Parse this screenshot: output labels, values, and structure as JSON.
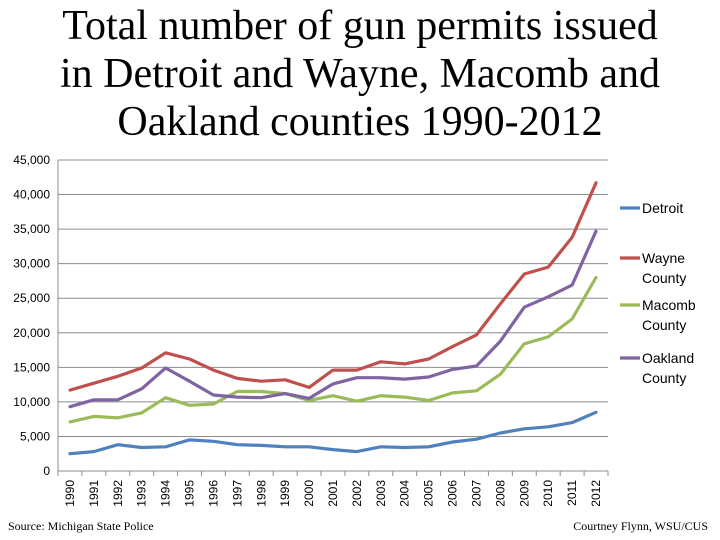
{
  "title_lines": [
    "Total number of gun permits issued",
    "in Detroit and Wayne, Macomb and",
    "Oakland counties 1990-2012"
  ],
  "source": "Source: Michigan State Police",
  "credit": "Courtney Flynn, WSU/CUS",
  "chart_data": {
    "type": "line",
    "title": "Total number of gun permits issued in Detroit and Wayne, Macomb and Oakland counties 1990-2012",
    "xlabel": "",
    "ylabel": "",
    "ylim": [
      0,
      45000
    ],
    "yticks": [
      "0",
      "5,000",
      "10,000",
      "15,000",
      "20,000",
      "25,000",
      "30,000",
      "35,000",
      "40,000",
      "45,000"
    ],
    "categories": [
      "1990",
      "1991",
      "1992",
      "1993",
      "1994",
      "1995",
      "1996",
      "1997",
      "1998",
      "1999",
      "2000",
      "2001",
      "2002",
      "2003",
      "2004",
      "2005",
      "2006",
      "2007",
      "2008",
      "2009",
      "2010",
      "2011",
      "2012"
    ],
    "legend_position": "right",
    "series": [
      {
        "name": "Detroit",
        "legend_lines": [
          "Detroit"
        ],
        "color": "#4f81bd",
        "values": [
          2500,
          2800,
          3800,
          3400,
          3500,
          4500,
          4300,
          3800,
          3700,
          3500,
          3500,
          3100,
          2800,
          3500,
          3400,
          3500,
          4200,
          4600,
          5500,
          6100,
          6400,
          7000,
          8500
        ]
      },
      {
        "name": "Wayne County",
        "legend_lines": [
          "Wayne",
          "County"
        ],
        "color": "#c0504d",
        "values": [
          11700,
          12700,
          13700,
          14900,
          17100,
          16200,
          14600,
          13400,
          13000,
          13200,
          12100,
          14600,
          14600,
          15800,
          15500,
          16200,
          18000,
          19700,
          24200,
          28500,
          29500,
          33800,
          41700
        ]
      },
      {
        "name": "Macomb County",
        "legend_lines": [
          "Macomb",
          "County"
        ],
        "color": "#9bbb59",
        "values": [
          7100,
          7900,
          7700,
          8400,
          10600,
          9500,
          9700,
          11500,
          11500,
          11200,
          10200,
          10900,
          10100,
          10900,
          10700,
          10200,
          11300,
          11600,
          14000,
          18400,
          19400,
          22000,
          28000
        ]
      },
      {
        "name": "Oakland County",
        "legend_lines": [
          "Oakland",
          "County"
        ],
        "color": "#8064a2",
        "values": [
          9300,
          10300,
          10300,
          11900,
          14900,
          13000,
          11000,
          10700,
          10600,
          11200,
          10500,
          12600,
          13500,
          13500,
          13300,
          13600,
          14700,
          15200,
          18800,
          23700,
          25200,
          26900,
          34700
        ]
      }
    ]
  }
}
